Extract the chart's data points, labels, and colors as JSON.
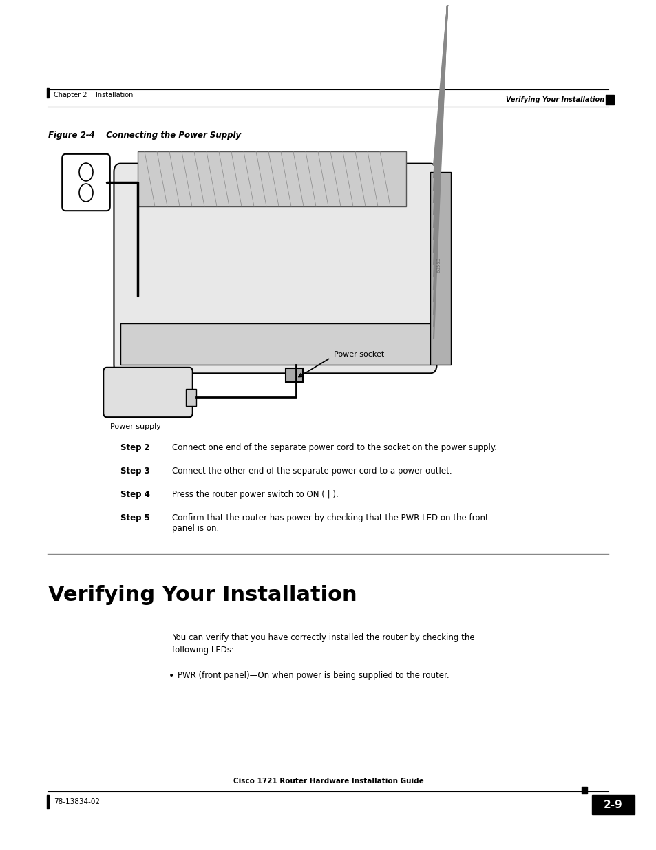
{
  "page_width": 9.54,
  "page_height": 12.35,
  "bg_color": "#ffffff",
  "header_left": "Chapter 2    Installation",
  "header_right": "Verifying Your Installation",
  "figure_caption": "Figure 2-4    Connecting the Power Supply",
  "steps": [
    {
      "label": "Step 2",
      "text": "Connect one end of the separate power cord to the socket on the power supply."
    },
    {
      "label": "Step 3",
      "text": "Connect the other end of the separate power cord to a power outlet."
    },
    {
      "label": "Step 4",
      "text": "Press the router power switch to ON ( | )."
    },
    {
      "label": "Step 5",
      "text": "Confirm that the router has power by checking that the PWR LED on the front\npanel is on."
    }
  ],
  "section_title": "Verifying Your Installation",
  "body_text": "You can verify that you have correctly installed the router by checking the\nfollowing LEDs:",
  "bullet_text": "PWR (front panel)—On when power is being supplied to the router.",
  "footer_left": "78-13834-02",
  "footer_center": "Cisco 1721 Router Hardware Installation Guide",
  "footer_page": "2-9",
  "power_socket_label": "Power socket",
  "power_supply_label": "Power supply"
}
